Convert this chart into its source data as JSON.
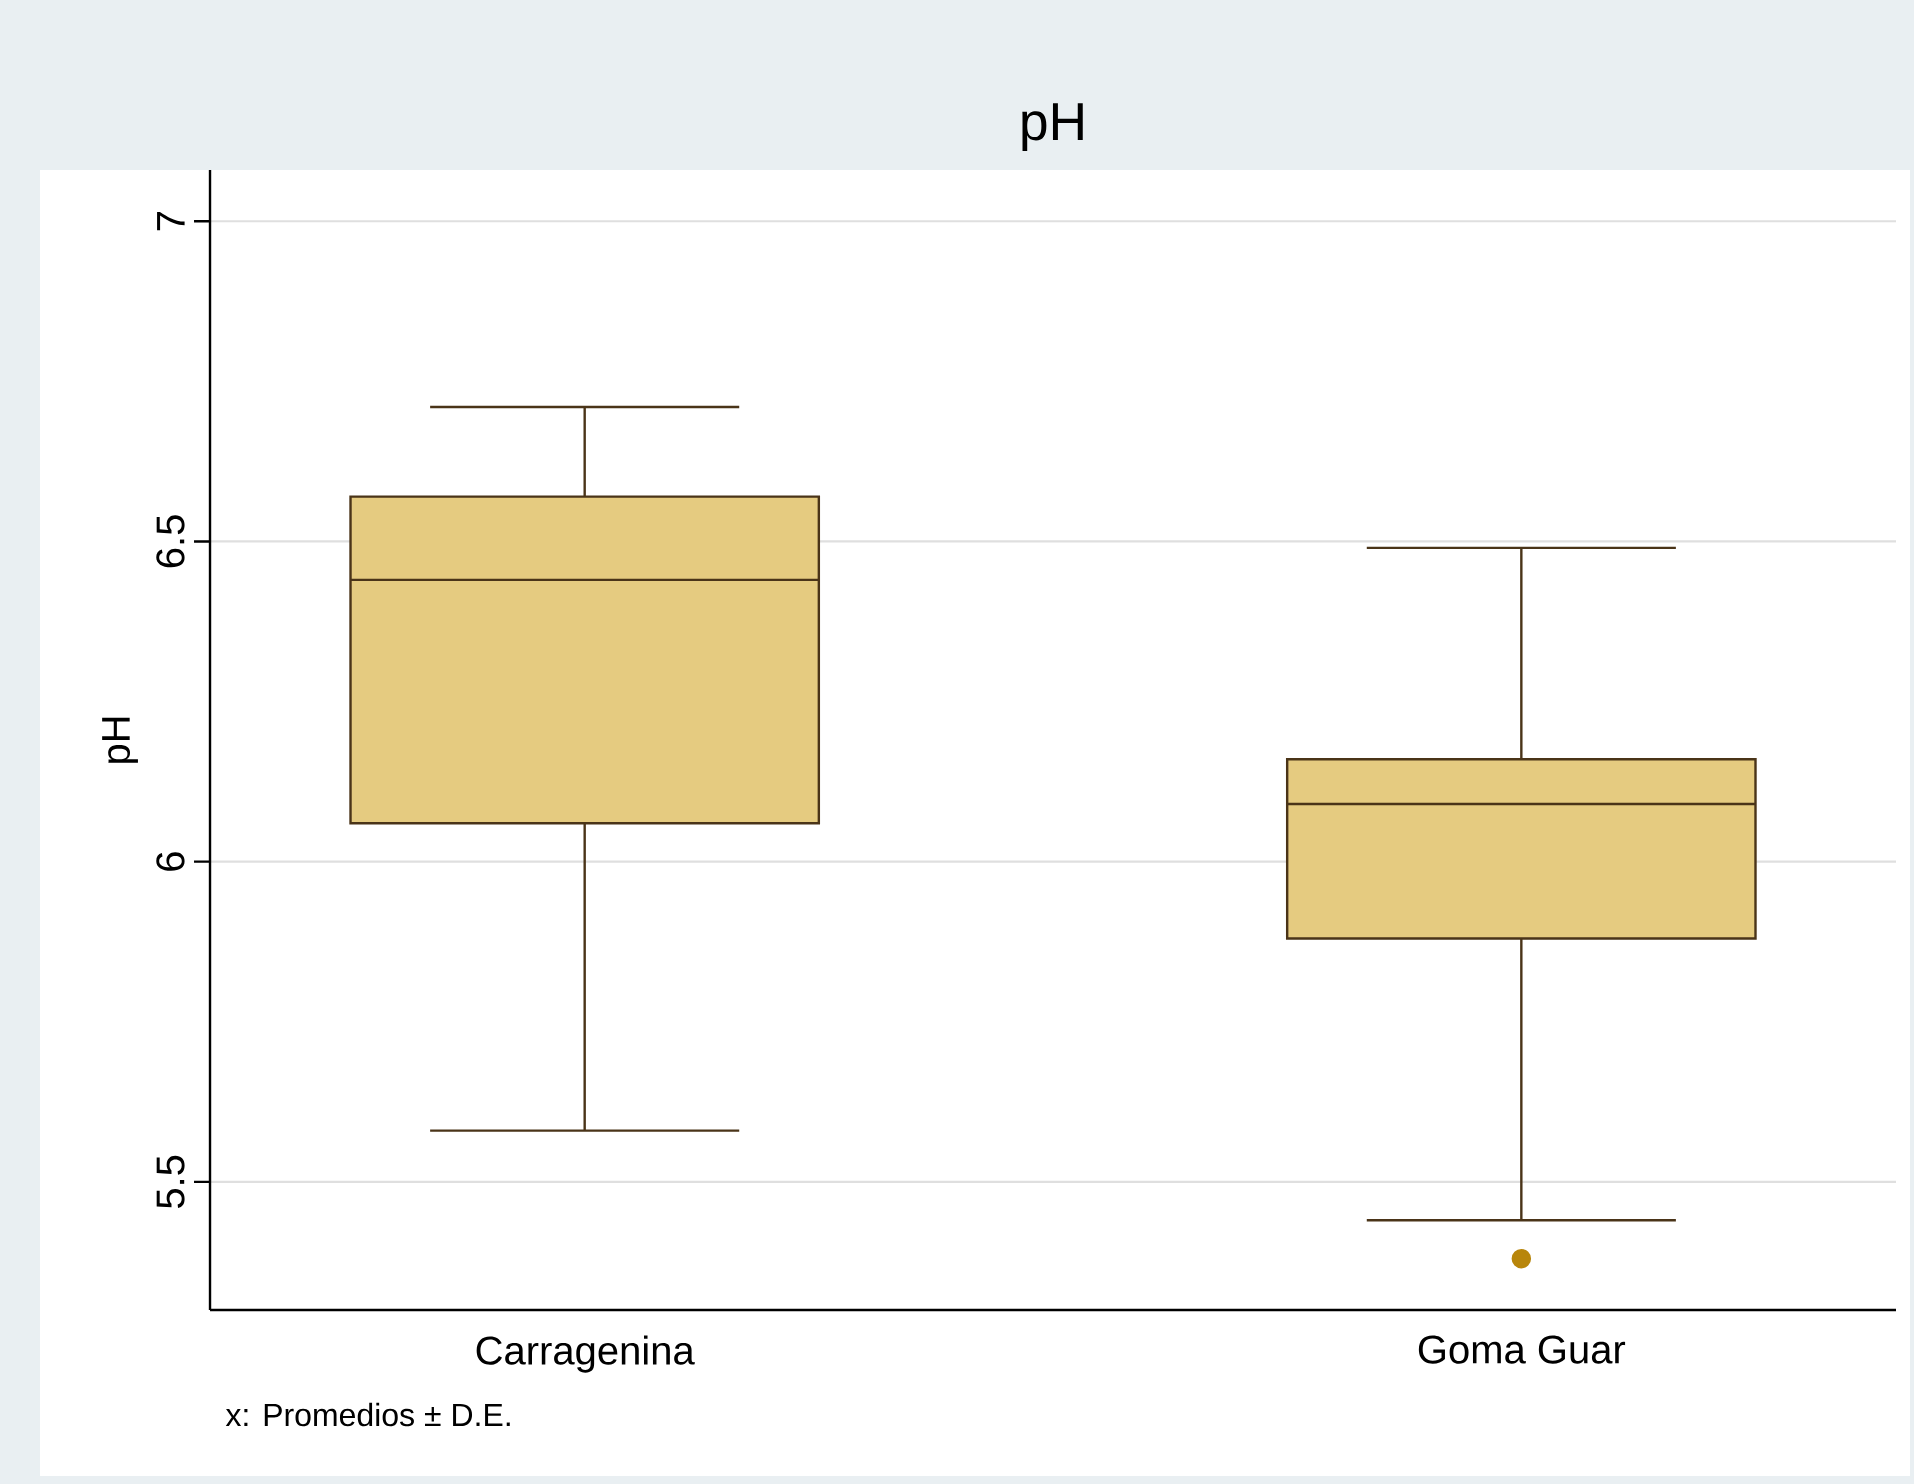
{
  "chart_data": {
    "type": "box",
    "title": "pH",
    "ylabel": "pH",
    "categories": [
      "Carragenina",
      "Goma Guar"
    ],
    "boxes": [
      {
        "low": 5.58,
        "q1": 6.06,
        "median": 6.44,
        "q3": 6.57,
        "high": 6.71
      },
      {
        "low": 5.44,
        "q1": 5.88,
        "median": 6.09,
        "q3": 6.16,
        "high": 6.49,
        "outliers": [
          5.38
        ]
      }
    ],
    "color": "#e5cb80",
    "ylim": [
      5.3,
      7.08
    ],
    "yticks": [
      5.5,
      6,
      6.5,
      7
    ],
    "grid": "y",
    "annotations": [
      "x: Promedios ± D.E."
    ]
  }
}
